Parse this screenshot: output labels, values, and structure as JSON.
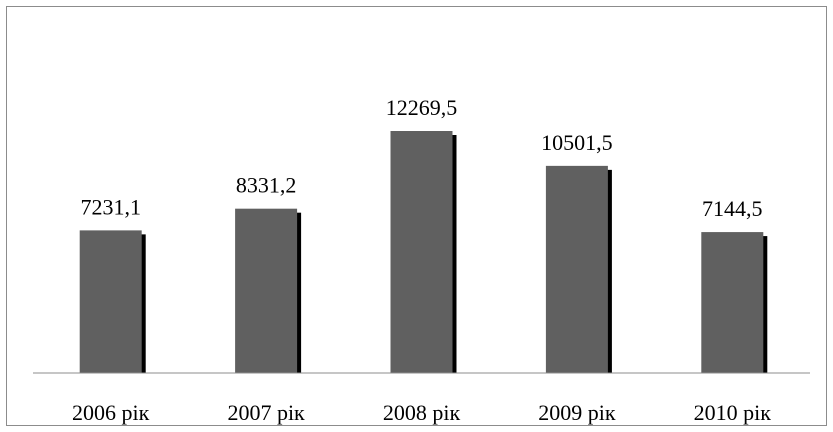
{
  "chart_data": {
    "type": "bar",
    "categories": [
      "2006 рік",
      "2007 рік",
      "2008 рік",
      "2009 рік",
      "2010 рік"
    ],
    "values": [
      7231.1,
      8331.2,
      12269.5,
      10501.5,
      7144.5
    ],
    "data_labels": [
      "7231,1",
      "8331,2",
      "12269,5",
      "10501,5",
      "7144,5"
    ],
    "title": "",
    "xlabel": "",
    "ylabel": "",
    "ylim": [
      0,
      14000
    ],
    "grid": false,
    "legend": "none",
    "bar_color": "#606060",
    "shadow_color": "#000000"
  }
}
